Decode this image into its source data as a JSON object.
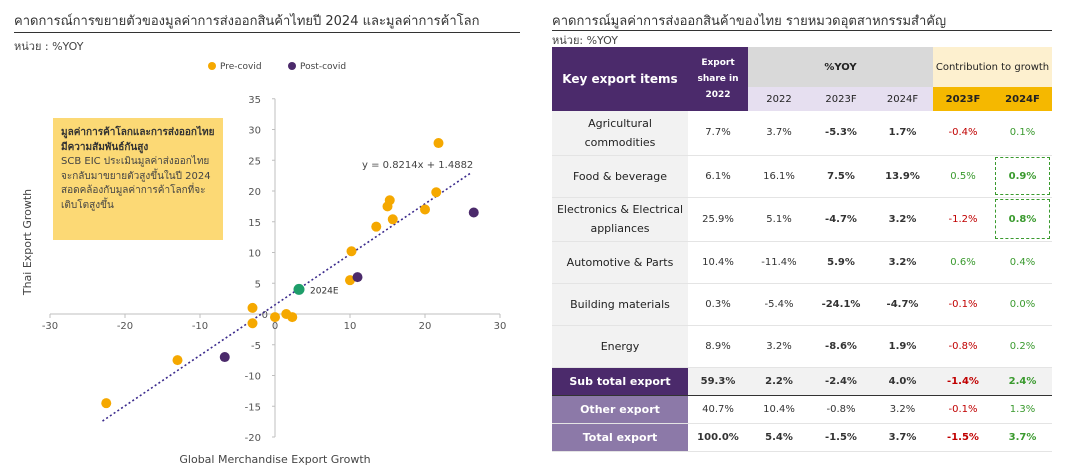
{
  "left_panel": {
    "title": "คาดการณ์การขยายตัวของมูลค่าการส่งออกสินค้าไทยปี 2024 และมูลค่าการค้าโลก",
    "unit": "หน่วย : %YOY",
    "callout": {
      "heading": "มูลค่าการค้าโลกและการส่งออกไทยมีความสัมพันธ์กันสูง",
      "body": "SCB EIC ประเมินมูลค่าส่งออกไทยจะกลับมาขยายตัวสูงขึ้นในปี 2024 สอดคล้องกับมูลค่าการค้าโลกที่จะเติบโตสูงขึ้น"
    },
    "colors": {
      "pre": "#F5A800",
      "post": "#4B2A6B",
      "forecast": "#1E9E6A",
      "trend": "#3B2A8C"
    }
  },
  "chart_data": {
    "type": "scatter",
    "xlabel": "Global Merchandise Export Growth",
    "ylabel": "Thai Export Growth",
    "xlim": [
      -30,
      30
    ],
    "ylim": [
      -20,
      35
    ],
    "xticks": [
      -30,
      -20,
      -10,
      0,
      10,
      20,
      30
    ],
    "yticks": [
      -20,
      -15,
      -10,
      -5,
      0,
      5,
      10,
      15,
      20,
      25,
      30,
      35
    ],
    "legend_position": "top",
    "series": [
      {
        "name": "Pre-covid",
        "color": "#F5A800",
        "points": [
          [
            -22.5,
            -14.5
          ],
          [
            -13,
            -7.5
          ],
          [
            -3,
            1
          ],
          [
            -3,
            -1.5
          ],
          [
            0,
            -0.5
          ],
          [
            1.5,
            0
          ],
          [
            2.3,
            -0.5
          ],
          [
            10,
            5.5
          ],
          [
            10.2,
            10.2
          ],
          [
            13.5,
            14.2
          ],
          [
            15,
            17.5
          ],
          [
            15.3,
            18.5
          ],
          [
            15.7,
            15.4
          ],
          [
            20,
            17
          ],
          [
            21.5,
            19.8
          ],
          [
            21.8,
            27.8
          ]
        ]
      },
      {
        "name": "Post-covid",
        "color": "#4B2A6B",
        "points": [
          [
            -6.7,
            -7
          ],
          [
            11,
            6
          ],
          [
            26.5,
            16.5
          ]
        ]
      }
    ],
    "forecast_point": {
      "label": "2024E",
      "x": 3.2,
      "y": 4.0,
      "color": "#1E9E6A"
    },
    "trendline": {
      "label": "y = 0.8214x + 1.4882",
      "slope": 0.8214,
      "intercept": 1.4882,
      "x_range": [
        -23,
        26
      ]
    }
  },
  "right_panel": {
    "title": "คาดการณ์มูลค่าการส่งออกสินค้าของไทย รายหมวดอุตสาหกรรมสำคัญ",
    "unit": "หน่วย: %YOY",
    "headers": {
      "key": "Key export items",
      "share": "Export share in 2022",
      "yoy": "%YOY",
      "contrib": "Contribution to growth",
      "y2022": "2022",
      "y2023f": "2023F",
      "y2024f": "2024F",
      "c2023f": "2023F",
      "c2024f": "2024F"
    },
    "rows": [
      {
        "item": "Agricultural commodities",
        "share": "7.7%",
        "y2022": "3.7%",
        "y2023": "-5.3%",
        "y2024": "1.7%",
        "c2023": "-0.4%",
        "c2024": "0.1%"
      },
      {
        "item": "Food & beverage",
        "share": "6.1%",
        "y2022": "16.1%",
        "y2023": "7.5%",
        "y2024": "13.9%",
        "c2023": "0.5%",
        "c2024": "0.9%"
      },
      {
        "item": "Electronics & Electrical appliances",
        "share": "25.9%",
        "y2022": "5.1%",
        "y2023": "-4.7%",
        "y2024": "3.2%",
        "c2023": "-1.2%",
        "c2024": "0.8%"
      },
      {
        "item": "Automotive & Parts",
        "share": "10.4%",
        "y2022": "-11.4%",
        "y2023": "5.9%",
        "y2024": "3.2%",
        "c2023": "0.6%",
        "c2024": "0.4%"
      },
      {
        "item": "Building materials",
        "share": "0.3%",
        "y2022": "-5.4%",
        "y2023": "-24.1%",
        "y2024": "-4.7%",
        "c2023": "-0.1%",
        "c2024": "0.0%"
      },
      {
        "item": "Energy",
        "share": "8.9%",
        "y2022": "3.2%",
        "y2023": "-8.6%",
        "y2024": "1.9%",
        "c2023": "-0.8%",
        "c2024": "0.2%"
      }
    ],
    "subtotal": {
      "item": "Sub total export",
      "share": "59.3%",
      "y2022": "2.2%",
      "y2023": "-2.4%",
      "y2024": "4.0%",
      "c2023": "-1.4%",
      "c2024": "2.4%"
    },
    "other": {
      "item": "Other export",
      "share": "40.7%",
      "y2022": "10.4%",
      "y2023": "-0.8%",
      "y2024": "3.2%",
      "c2023": "-0.1%",
      "c2024": "1.3%"
    },
    "total": {
      "item": "Total export",
      "share": "100.0%",
      "y2022": "5.4%",
      "y2023": "-1.5%",
      "y2024": "3.7%",
      "c2023": "-1.5%",
      "c2024": "3.7%"
    }
  }
}
